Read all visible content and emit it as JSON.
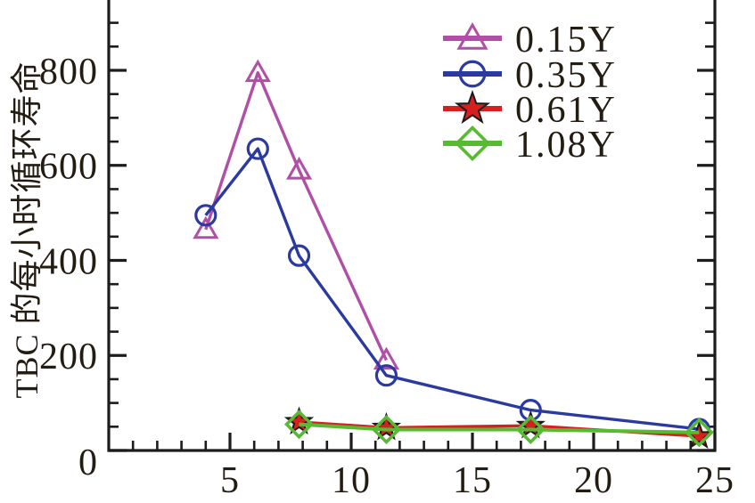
{
  "figure": {
    "background": "#ffffff",
    "axis_color": "#1c1c1c",
    "text_color": "#231c12"
  },
  "chart_data": {
    "type": "line",
    "title": "",
    "xlabel": "",
    "ylabel": "TBC 的每小时循环寿命",
    "xlim": [
      0,
      25
    ],
    "ylim": [
      0,
      948
    ],
    "x_major_ticks": [
      5,
      10,
      15,
      20,
      25
    ],
    "x_minor_step": 1,
    "y_major_ticks": [
      0,
      200,
      400,
      600,
      800
    ],
    "y_minor_step": 50,
    "grid": false,
    "legend_position": "upper-right-inside",
    "series": [
      {
        "name": "0.15Y",
        "color": "#b04fa5",
        "marker": "triangle-open",
        "points": [
          [
            4.0,
            465
          ],
          [
            6.15,
            795
          ],
          [
            7.85,
            590
          ],
          [
            11.45,
            190
          ]
        ]
      },
      {
        "name": "0.35Y",
        "color": "#2b3aa0",
        "marker": "circle-open",
        "points": [
          [
            4.0,
            495
          ],
          [
            6.15,
            635
          ],
          [
            7.85,
            410
          ],
          [
            11.45,
            158
          ],
          [
            17.4,
            85
          ],
          [
            24.35,
            45
          ]
        ]
      },
      {
        "name": "0.61Y",
        "color": "#d6201f",
        "marker": "star-filled",
        "marker_outline": "#1a1a1a",
        "points": [
          [
            7.85,
            60
          ],
          [
            11.45,
            48
          ],
          [
            17.4,
            52
          ],
          [
            24.35,
            30
          ]
        ]
      },
      {
        "name": "1.08Y",
        "color": "#56bb31",
        "marker": "diamond-open",
        "points": [
          [
            7.85,
            55
          ],
          [
            11.45,
            44
          ],
          [
            17.4,
            44
          ],
          [
            24.35,
            38
          ]
        ]
      }
    ]
  }
}
